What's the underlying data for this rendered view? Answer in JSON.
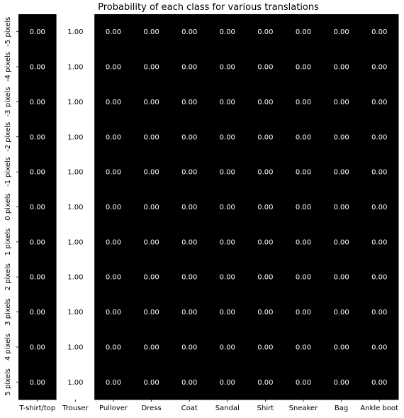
{
  "chart_data": {
    "type": "heatmap",
    "title": "Probability of each class for various translations",
    "xlabel": "",
    "ylabel": "",
    "x_categories": [
      "T-shirt/top",
      "Trouser",
      "Pullover",
      "Dress",
      "Coat",
      "Sandal",
      "Shirt",
      "Sneaker",
      "Bag",
      "Ankle boot"
    ],
    "y_categories": [
      "-5 pixels",
      "-4 pixels",
      "-3 pixels",
      "-2 pixels",
      "-1 pixels",
      "0 pixels",
      "1 pixels",
      "2 pixels",
      "3 pixels",
      "4 pixels",
      "5 pixels"
    ],
    "value_format": "2 decimals",
    "colormap": "gray",
    "vmin": 0,
    "vmax": 1,
    "values": [
      [
        0,
        1,
        0,
        0,
        0,
        0,
        0,
        0,
        0,
        0
      ],
      [
        0,
        1,
        0,
        0,
        0,
        0,
        0,
        0,
        0,
        0
      ],
      [
        0,
        1,
        0,
        0,
        0,
        0,
        0,
        0,
        0,
        0
      ],
      [
        0,
        1,
        0,
        0,
        0,
        0,
        0,
        0,
        0,
        0
      ],
      [
        0,
        1,
        0,
        0,
        0,
        0,
        0,
        0,
        0,
        0
      ],
      [
        0,
        1,
        0,
        0,
        0,
        0,
        0,
        0,
        0,
        0
      ],
      [
        0,
        1,
        0,
        0,
        0,
        0,
        0,
        0,
        0,
        0
      ],
      [
        0,
        1,
        0,
        0,
        0,
        0,
        0,
        0,
        0,
        0
      ],
      [
        0,
        1,
        0,
        0,
        0,
        0,
        0,
        0,
        0,
        0
      ],
      [
        0,
        1,
        0,
        0,
        0,
        0,
        0,
        0,
        0,
        0
      ],
      [
        0,
        1,
        0,
        0,
        0,
        0,
        0,
        0,
        0,
        0
      ]
    ],
    "colors": {
      "low": "#000000",
      "high": "#ffffff",
      "text_on_dark": "#ffffff",
      "text_on_light": "#000000"
    }
  }
}
